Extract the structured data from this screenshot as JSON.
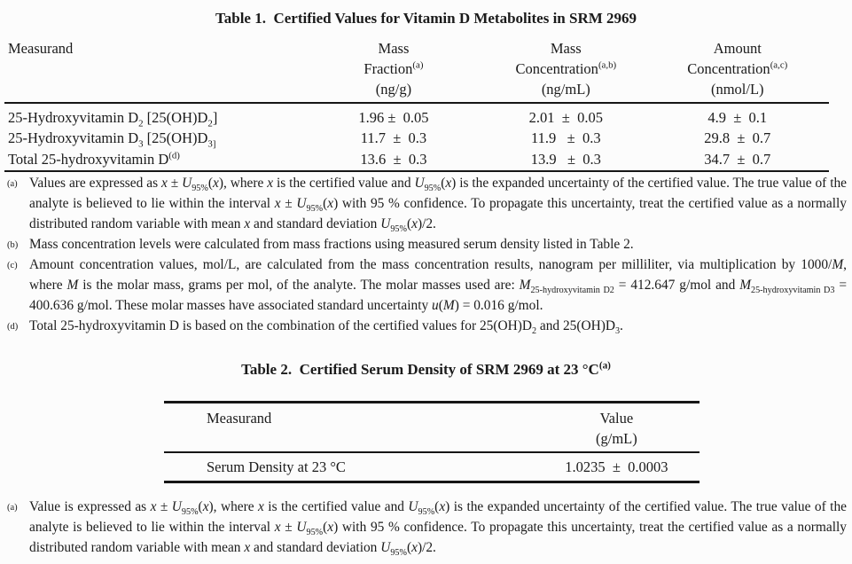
{
  "table1": {
    "title": "Table 1.  Certified Values for Vitamin D Metabolites in SRM 2969",
    "columns": [
      {
        "label_html": "Measurand"
      },
      {
        "label_html": "Mass<br>Fraction<sup>(a)</sup><br>(ng/g)"
      },
      {
        "label_html": "Mass<br>Concentration<sup>(a,b)</sup><br>(ng/mL)"
      },
      {
        "label_html": "Amount<br>Concentration<sup>(a,c)</sup><br>(nmol/L)"
      }
    ],
    "rows": [
      {
        "measurand_html": "25-Hydroxyvitamin D<sub>2</sub> [25(OH)D<sub>2</sub>]",
        "mass_fraction": "1.96 ±  0.05",
        "mass_concentration": "2.01  ±  0.05",
        "amount_concentration": "4.9  ±  0.1"
      },
      {
        "measurand_html": "25-Hydroxyvitamin D<sub>3</sub> [25(OH)D<sub>3]</sub>",
        "mass_fraction": "11.7  ±  0.3",
        "mass_concentration": "11.9   ±  0.3",
        "amount_concentration": "29.8  ±  0.7"
      },
      {
        "measurand_html": "Total 25-hydroxyvitamin D<sup>(d)</sup>",
        "mass_fraction": "13.6  ±  0.3",
        "mass_concentration": "13.9   ±  0.3",
        "amount_concentration": "34.7  ±  0.7"
      }
    ],
    "footnotes": [
      {
        "marker": "(a)",
        "text_html": "Values are expressed as <i>x</i> ± <i>U</i><sub>95%</sub>(<i>x</i>), where <i>x</i> is the certified value and <i>U</i><sub>95%</sub>(<i>x</i>) is the expanded uncertainty of the certified value.  The true value of the analyte is believed to lie within the interval <i>x</i> ± <i>U</i><sub>95%</sub>(<i>x</i>) with 95 % confidence.  To propagate this uncertainty, treat the certified value as a normally distributed random variable with mean <i>x</i> and standard deviation <i>U</i><sub>95%</sub>(<i>x</i>)/2."
      },
      {
        "marker": "(b)",
        "text_html": "Mass concentration levels were calculated from mass fractions using measured serum density listed in Table 2."
      },
      {
        "marker": "(c)",
        "text_html": "Amount concentration values, mol/L, are calculated from the mass concentration results, nanogram per milliliter, via multiplication by 1000/<i>M</i>, where <i>M</i> is the molar mass, grams per mol, of the analyte.  The molar masses used are: <i>M</i><sub>25-hydroxyvitamin D2</sub> = 412.647 g/mol and <i>M</i><sub>25-hydroxyvitamin D3</sub> = 400.636 g/mol.  These molar masses have associated standard uncertainty <i>u</i>(<i>M</i>) = 0.016 g/mol."
      },
      {
        "marker": "(d)",
        "text_html": "Total 25-hydroxyvitamin D is based on the combination of the certified values for 25(OH)D<sub>2</sub> and 25(OH)D<sub>3</sub>."
      }
    ]
  },
  "table2": {
    "title_html": "Table 2.  Certified Serum Density of SRM 2969 at 23 °C<sup>(a)</sup>",
    "columns": [
      {
        "label_html": "Measurand"
      },
      {
        "label_html": "Value<br>(g/mL)"
      }
    ],
    "rows": [
      {
        "measurand": "Serum Density at 23 °C",
        "value": "1.0235  ±  0.0003"
      }
    ],
    "footnotes": [
      {
        "marker": "(a)",
        "text_html": "Value is expressed as <i>x</i> ± <i>U</i><sub>95%</sub>(<i>x</i>), where <i>x</i> is the certified value and <i>U</i><sub>95%</sub>(<i>x</i>) is the expanded uncertainty of the certified value.  The true value of the analyte is believed to lie within the interval <i>x</i> ± <i>U</i><sub>95%</sub>(<i>x</i>) with 95 % confidence.  To propagate this uncertainty, treat the certified value as a normally distributed random variable with mean <i>x</i> and standard deviation <i>U</i><sub>95%</sub>(<i>x</i>)/2."
      }
    ]
  }
}
